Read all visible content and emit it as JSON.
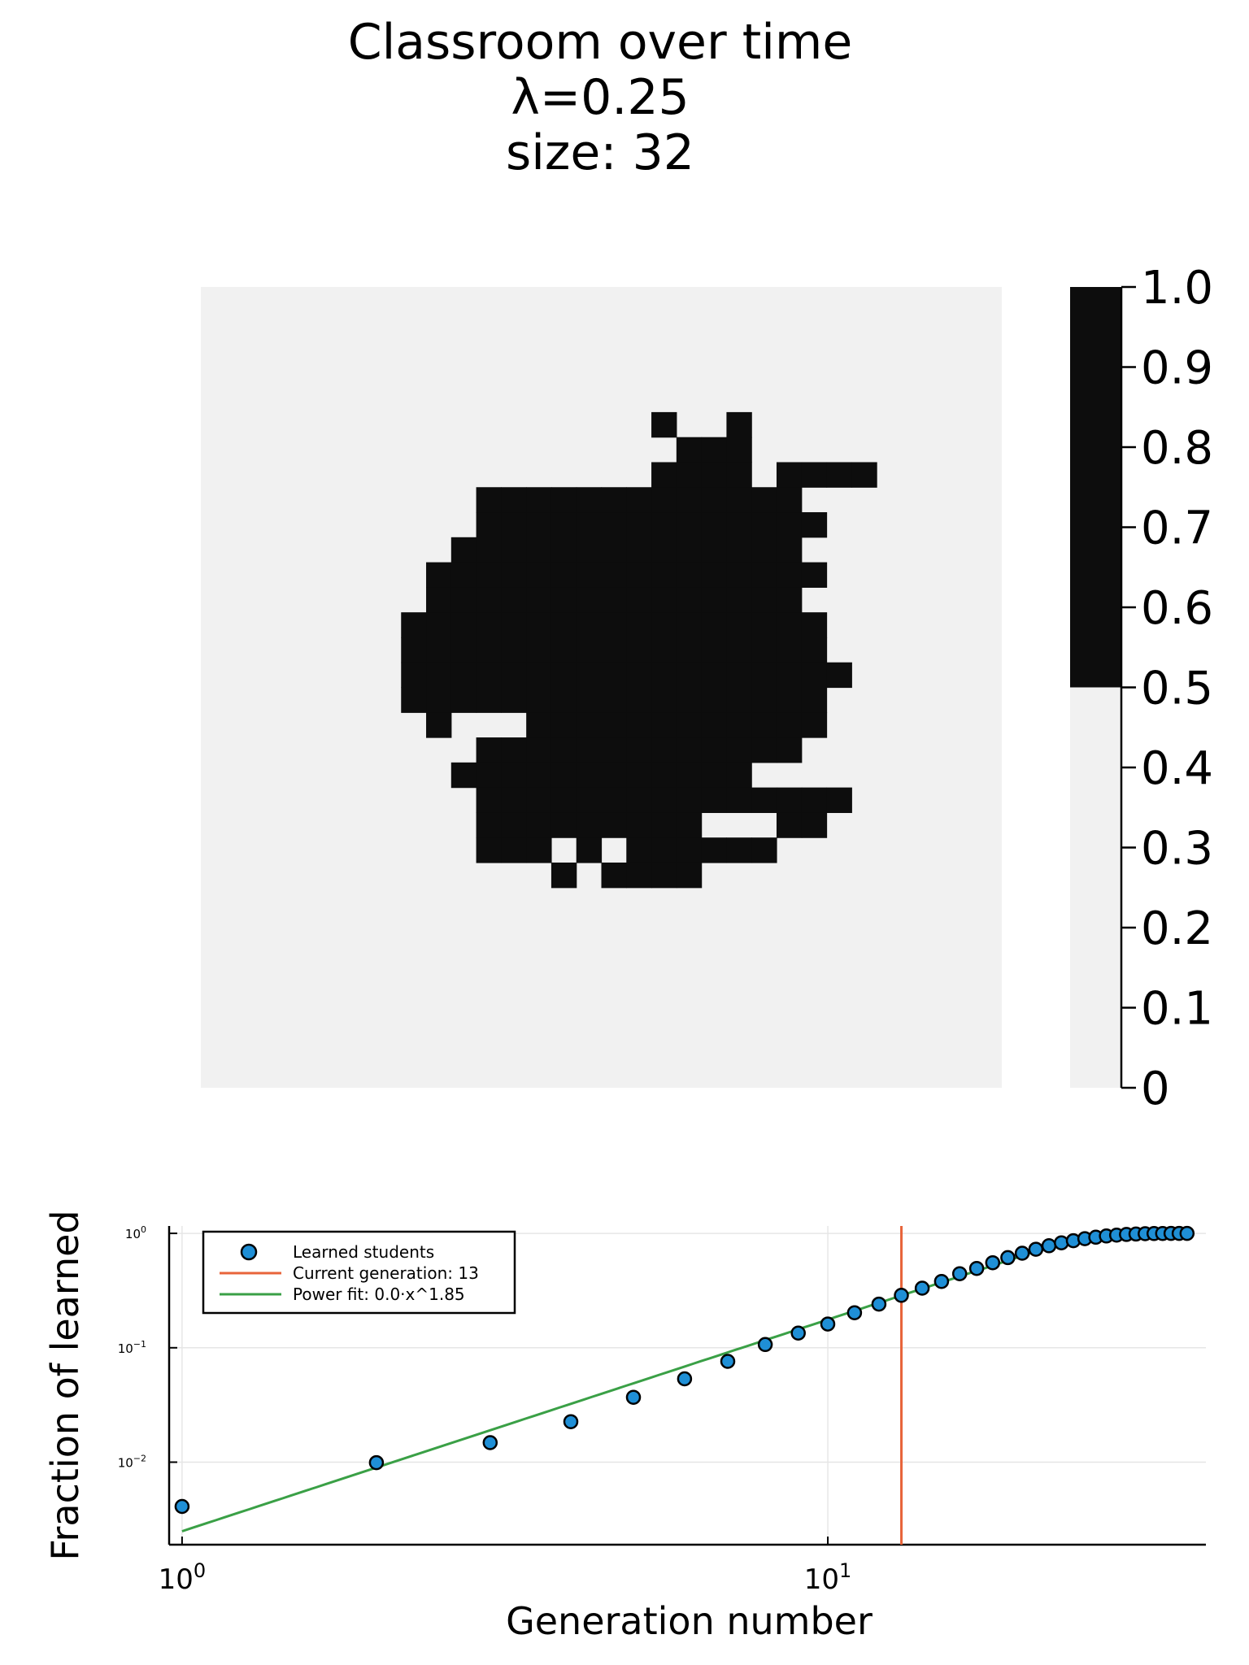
{
  "title_lines": [
    "Classroom over time",
    "λ=0.25",
    "size: 32"
  ],
  "colors": {
    "background": "#ffffff",
    "light": "#f1f1f1",
    "dark": "#0d0d0d",
    "points": "#1f8fd6",
    "vline": "#e8643a",
    "fit": "#3aa046",
    "grid": "#e6e6e6"
  },
  "chart_data": [
    {
      "type": "heatmap",
      "grid_size": 32,
      "cells": [
        "................................",
        "................................",
        "................................",
        "................................",
        ".............................. .",
        "..................#..#..........",
        "...................###..........",
        "..................####.####.....",
        "...........#############........",
        "...........##############.......",
        "..........##############........",
        ".........################.......",
        ".........###############........",
        "........#################.......",
        "........#################.......",
        "........##################......",
        "........#################.......",
        ".........#...############.......",
        "...........#############........",
        "..........############..........",
        "...........###############......",
        "...........#########...##.......",
        "...........###.#.######.........",
        "..............#.####............",
        "................................",
        "................................",
        "................................",
        "................................",
        "................................",
        "................................",
        "................................",
        "................................"
      ],
      "colorbar": {
        "min": 0,
        "max": 1.0,
        "threshold": 0.5,
        "ticks": [
          "0",
          "0.1",
          "0.2",
          "0.3",
          "0.4",
          "0.5",
          "0.6",
          "0.7",
          "0.8",
          "0.9",
          "1.0"
        ]
      }
    },
    {
      "type": "scatter",
      "xlabel": "Generation number",
      "ylabel": "Fraction of learned",
      "xscale": "log10",
      "yscale": "log10",
      "xlim": [
        0.955,
        38.5
      ],
      "ylim": [
        0.0019,
        1.16
      ],
      "xticks": [
        {
          "value": 1,
          "base": "10",
          "exp": "0"
        },
        {
          "value": 10,
          "base": "10",
          "exp": "1"
        }
      ],
      "yticks": [
        {
          "value": 1,
          "base": "10",
          "exp": "0"
        },
        {
          "value": 0.1,
          "base": "10",
          "exp": "−1"
        },
        {
          "value": 0.01,
          "base": "10",
          "exp": "−2"
        }
      ],
      "grid": true,
      "legend_position": "top-left",
      "series": [
        {
          "name": "Learned students",
          "kind": "points",
          "x": [
            1,
            2,
            3,
            4,
            5,
            6,
            7,
            8,
            9,
            10,
            11,
            12,
            13,
            14,
            15,
            16,
            17,
            18,
            19,
            20,
            21,
            22,
            23,
            24,
            25,
            26,
            27,
            28,
            29,
            30,
            31,
            32,
            33,
            34,
            35,
            36
          ],
          "y": [
            0.0041,
            0.0099,
            0.0148,
            0.0226,
            0.0369,
            0.0535,
            0.0761,
            0.1068,
            0.1344,
            0.1613,
            0.2023,
            0.2408,
            0.2873,
            0.3318,
            0.38,
            0.4436,
            0.4935,
            0.5537,
            0.6134,
            0.6705,
            0.7263,
            0.7799,
            0.8261,
            0.863,
            0.8985,
            0.926,
            0.9485,
            0.9657,
            0.9782,
            0.9865,
            0.9922,
            0.9959,
            0.9979,
            0.999,
            0.9995,
            0.9998
          ]
        },
        {
          "name": "Current generation: 13",
          "kind": "vline",
          "x": 13
        },
        {
          "name": "Power fit: 0.0·x^1.85",
          "kind": "fit",
          "coef": 0.00249,
          "exponent": 1.85,
          "x_range": [
            1,
            36
          ]
        }
      ]
    }
  ]
}
